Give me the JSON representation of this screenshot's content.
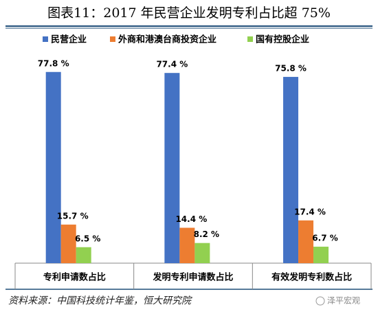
{
  "chart_data": {
    "type": "bar",
    "title": "图表11：2017 年民营企业发明专利占比超 75%",
    "categories": [
      "专利申请数占比",
      "发明专利申请数占比",
      "有效发明专利数占比"
    ],
    "series": [
      {
        "name": "民营企业",
        "color": "#4472c4",
        "values": [
          77.8,
          77.4,
          75.8
        ],
        "value_labels": [
          "77.8 %",
          "77.4 %",
          "75.8 %"
        ]
      },
      {
        "name": "外商和港澳台商投资企业",
        "color": "#ed7d31",
        "values": [
          15.7,
          14.4,
          17.4
        ],
        "value_labels": [
          "15.7 %",
          "14.4 %",
          "17.4 %"
        ]
      },
      {
        "name": "国有控股企业",
        "color": "#92d050",
        "values": [
          6.5,
          8.2,
          6.7
        ],
        "value_labels": [
          "6.5 %",
          "8.2 %",
          "6.7 %"
        ]
      }
    ],
    "ylim": [
      0,
      85
    ],
    "source": "资料来源：中国科技统计年鉴，恒大研究院",
    "watermark": "泽平宏观"
  }
}
